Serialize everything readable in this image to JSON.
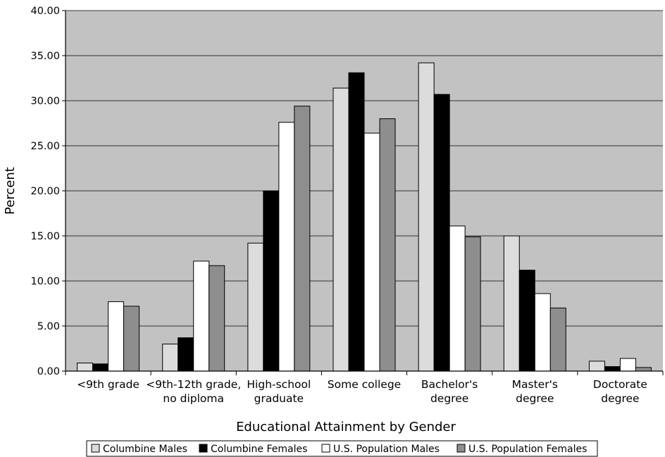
{
  "chart_data": {
    "type": "bar",
    "xlabel": "Educational Attainment by Gender",
    "ylabel": "Percent",
    "ylim": [
      0,
      40
    ],
    "yticks": [
      "0.00",
      "5.00",
      "10.00",
      "15.00",
      "20.00",
      "25.00",
      "30.00",
      "35.00",
      "40.00"
    ],
    "grid": true,
    "legend_position": "bottom",
    "categories": [
      [
        "<9th  grade"
      ],
      [
        "<9th-12th grade,",
        "no diploma"
      ],
      [
        "High-school",
        "graduate"
      ],
      [
        "Some college"
      ],
      [
        "Bachelor's",
        "degree"
      ],
      [
        "Master's",
        "degree"
      ],
      [
        "Doctorate",
        "degree"
      ]
    ],
    "series": [
      {
        "name": "Columbine Males",
        "color": "#dcdcdc",
        "values": [
          0.9,
          3.0,
          14.2,
          31.4,
          34.2,
          15.0,
          1.1
        ]
      },
      {
        "name": "Columbine Females",
        "color": "#000000",
        "values": [
          0.8,
          3.7,
          20.0,
          33.1,
          30.7,
          11.2,
          0.5
        ]
      },
      {
        "name": "U.S. Population Males",
        "color": "#ffffff",
        "values": [
          7.7,
          12.2,
          27.6,
          26.4,
          16.1,
          8.6,
          1.4
        ]
      },
      {
        "name": "U.S. Population Females",
        "color": "#8e8e8e",
        "values": [
          7.2,
          11.7,
          29.4,
          28.0,
          14.9,
          7.0,
          0.4
        ]
      }
    ]
  }
}
